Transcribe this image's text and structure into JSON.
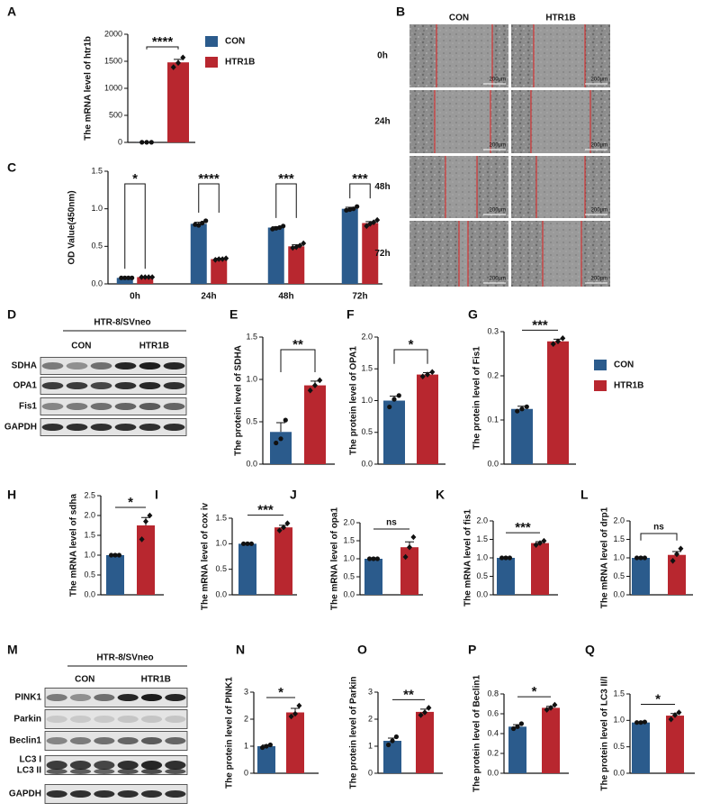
{
  "chart_data": [
    {
      "type": "bar",
      "panel": "A",
      "ylabel": "The mRNA level of htr1b",
      "ylim": [
        0,
        2000
      ],
      "yticks": [
        0,
        500,
        1000,
        1500,
        2000
      ],
      "significance": "****",
      "series": [
        {
          "name": "CON",
          "color": "#2b5b8c",
          "values": [
            2
          ],
          "errors": [
            1
          ],
          "points": [
            [
              2,
              2,
              2
            ]
          ]
        },
        {
          "name": "HTR1B",
          "color": "#b8272f",
          "values": [
            1480
          ],
          "errors": [
            55
          ],
          "points": [
            [
              1390,
              1470,
              1570
            ]
          ]
        }
      ]
    },
    {
      "type": "bar",
      "panel": "C",
      "ylabel": "OD Value(450nm)",
      "categories": [
        "0h",
        "24h",
        "48h",
        "72h"
      ],
      "ylim": [
        0,
        1.5
      ],
      "yticks": [
        {
          "value": 0,
          "label": "0.0"
        },
        0.5,
        {
          "value": 1,
          "label": "1.0"
        },
        1.5
      ],
      "significance": [
        "*",
        "****",
        "***",
        "***"
      ],
      "series": [
        {
          "color": "#2b5b8c",
          "values": [
            0.08,
            0.8,
            0.75,
            1.0
          ],
          "errors": [
            0.003,
            0.02,
            0.01,
            0.02
          ],
          "points": [
            [
              0.08,
              0.08,
              0.08,
              0.08
            ],
            [
              0.79,
              0.78,
              0.81,
              0.84
            ],
            [
              0.73,
              0.74,
              0.75,
              0.77
            ],
            [
              0.98,
              0.99,
              1.0,
              1.03
            ]
          ]
        },
        {
          "color": "#b8272f",
          "values": [
            0.09,
            0.33,
            0.5,
            0.81
          ],
          "errors": [
            0.003,
            0.01,
            0.02,
            0.02
          ],
          "points": [
            [
              0.09,
              0.09,
              0.09,
              0.09
            ],
            [
              0.32,
              0.33,
              0.33,
              0.34
            ],
            [
              0.48,
              0.49,
              0.51,
              0.54
            ],
            [
              0.77,
              0.8,
              0.82,
              0.85
            ]
          ]
        }
      ]
    },
    {
      "type": "bar",
      "panel": "E",
      "ylabel": "The protein level of SDHA",
      "ylim": [
        0,
        1.5
      ],
      "yticks": [
        {
          "value": 0,
          "label": "0.0"
        },
        0.5,
        {
          "value": 1,
          "label": "1.0"
        },
        1.5
      ],
      "significance": "**",
      "series": [
        {
          "color": "#2b5b8c",
          "values": [
            0.38
          ],
          "errors": [
            0.11
          ],
          "points": [
            [
              0.25,
              0.3,
              0.52
            ]
          ]
        },
        {
          "color": "#b8272f",
          "values": [
            0.93
          ],
          "errors": [
            0.05
          ],
          "points": [
            [
              0.87,
              0.93,
              0.99
            ]
          ]
        }
      ]
    },
    {
      "type": "bar",
      "panel": "F",
      "ylabel": "The protein level of OPA1",
      "ylim": [
        0,
        2
      ],
      "yticks": [
        {
          "value": 0,
          "label": "0.0"
        },
        0.5,
        {
          "value": 1,
          "label": "1.0"
        },
        1.5,
        {
          "value": 2,
          "label": "2.0"
        }
      ],
      "significance": "*",
      "series": [
        {
          "color": "#2b5b8c",
          "values": [
            1.0
          ],
          "errors": [
            0.07
          ],
          "points": [
            [
              0.9,
              1.02,
              1.08
            ]
          ]
        },
        {
          "color": "#b8272f",
          "values": [
            1.41
          ],
          "errors": [
            0.03
          ],
          "points": [
            [
              1.38,
              1.41,
              1.45
            ]
          ]
        }
      ]
    },
    {
      "type": "bar",
      "panel": "G",
      "ylabel": "The protein level of Fis1",
      "ylim": [
        0,
        0.3
      ],
      "yticks": [
        {
          "value": 0,
          "label": "0.0"
        },
        0.1,
        0.2,
        0.3
      ],
      "significance": "***",
      "series": [
        {
          "name": "CON",
          "color": "#2b5b8c",
          "values": [
            0.125
          ],
          "errors": [
            0.006
          ],
          "points": [
            [
              0.12,
              0.125,
              0.13
            ]
          ]
        },
        {
          "name": "HTR1B",
          "color": "#b8272f",
          "values": [
            0.278
          ],
          "errors": [
            0.005
          ],
          "points": [
            [
              0.272,
              0.278,
              0.285
            ]
          ]
        }
      ]
    },
    {
      "type": "bar",
      "panel": "H",
      "ylabel": "The mRNA level of sdha",
      "ylim": [
        0,
        2.5
      ],
      "yticks": [
        {
          "value": 0,
          "label": "0.0"
        },
        0.5,
        {
          "value": 1,
          "label": "1.0"
        },
        1.5,
        {
          "value": 2,
          "label": "2.0"
        },
        2.5
      ],
      "significance": "*",
      "series": [
        {
          "color": "#2b5b8c",
          "values": [
            1.0
          ],
          "errors": [
            0.01
          ],
          "points": [
            [
              1,
              1,
              1
            ]
          ]
        },
        {
          "color": "#b8272f",
          "values": [
            1.75
          ],
          "errors": [
            0.2
          ],
          "points": [
            [
              1.4,
              1.85,
              2.0
            ]
          ]
        }
      ]
    },
    {
      "type": "bar",
      "panel": "I",
      "ylabel": "The mRNA level of cox iv",
      "ylim": [
        0,
        1.5
      ],
      "yticks": [
        {
          "value": 0,
          "label": "0.0"
        },
        0.5,
        {
          "value": 1,
          "label": "1.0"
        },
        1.5
      ],
      "significance": "***",
      "series": [
        {
          "color": "#2b5b8c",
          "values": [
            1.0
          ],
          "errors": [
            0.005
          ],
          "points": [
            [
              1,
              1,
              1
            ]
          ]
        },
        {
          "color": "#b8272f",
          "values": [
            1.32
          ],
          "errors": [
            0.04
          ],
          "points": [
            [
              1.26,
              1.32,
              1.4
            ]
          ]
        }
      ]
    },
    {
      "type": "bar",
      "panel": "J",
      "ylabel": "The mRNA level of opa1",
      "ylim": [
        0,
        2
      ],
      "yticks": [
        {
          "value": 0,
          "label": "0.0"
        },
        0.5,
        {
          "value": 1,
          "label": "1.0"
        },
        1.5,
        {
          "value": 2,
          "label": "2.0"
        }
      ],
      "significance": "ns",
      "series": [
        {
          "color": "#2b5b8c",
          "values": [
            1.0
          ],
          "errors": [
            0.005
          ],
          "points": [
            [
              1,
              1,
              1
            ]
          ]
        },
        {
          "color": "#b8272f",
          "values": [
            1.32
          ],
          "errors": [
            0.15
          ],
          "points": [
            [
              1.05,
              1.32,
              1.6
            ]
          ]
        }
      ]
    },
    {
      "type": "bar",
      "panel": "K",
      "ylabel": "The mRNA level of fis1",
      "ylim": [
        0,
        2
      ],
      "yticks": [
        {
          "value": 0,
          "label": "0.0"
        },
        0.5,
        {
          "value": 1,
          "label": "1.0"
        },
        1.5,
        {
          "value": 2,
          "label": "2.0"
        }
      ],
      "significance": "***",
      "series": [
        {
          "color": "#2b5b8c",
          "values": [
            1.0
          ],
          "errors": [
            0.005
          ],
          "points": [
            [
              1,
              1,
              1
            ]
          ]
        },
        {
          "color": "#b8272f",
          "values": [
            1.4
          ],
          "errors": [
            0.04
          ],
          "points": [
            [
              1.35,
              1.4,
              1.46
            ]
          ]
        }
      ]
    },
    {
      "type": "bar",
      "panel": "L",
      "ylabel": "The mRNA level of drp1",
      "ylim": [
        0,
        2
      ],
      "yticks": [
        {
          "value": 0,
          "label": "0.0"
        },
        0.5,
        {
          "value": 1,
          "label": "1.0"
        },
        1.5,
        {
          "value": 2,
          "label": "2.0"
        }
      ],
      "significance": "ns",
      "series": [
        {
          "color": "#2b5b8c",
          "values": [
            1.0
          ],
          "errors": [
            0.005
          ],
          "points": [
            [
              1,
              1,
              1
            ]
          ]
        },
        {
          "color": "#b8272f",
          "values": [
            1.08
          ],
          "errors": [
            0.09
          ],
          "points": [
            [
              0.92,
              1.1,
              1.25
            ]
          ]
        }
      ]
    },
    {
      "type": "bar",
      "panel": "N",
      "ylabel": "The protein level of PINK1",
      "ylim": [
        0,
        3
      ],
      "yticks": [
        0,
        1,
        2,
        3
      ],
      "significance": "*",
      "series": [
        {
          "color": "#2b5b8c",
          "values": [
            1.0
          ],
          "errors": [
            0.04
          ],
          "points": [
            [
              0.95,
              1.0,
              1.05
            ]
          ]
        },
        {
          "color": "#b8272f",
          "values": [
            2.25
          ],
          "errors": [
            0.15
          ],
          "points": [
            [
              2.1,
              2.2,
              2.5
            ]
          ]
        }
      ]
    },
    {
      "type": "bar",
      "panel": "O",
      "ylabel": "The protein level of Parkin",
      "ylim": [
        0,
        3
      ],
      "yticks": [
        0,
        1,
        2,
        3
      ],
      "significance": "**",
      "series": [
        {
          "color": "#2b5b8c",
          "values": [
            1.2
          ],
          "errors": [
            0.1
          ],
          "points": [
            [
              1.05,
              1.2,
              1.35
            ]
          ]
        },
        {
          "color": "#b8272f",
          "values": [
            2.27
          ],
          "errors": [
            0.1
          ],
          "points": [
            [
              2.15,
              2.25,
              2.42
            ]
          ]
        }
      ]
    },
    {
      "type": "bar",
      "panel": "P",
      "ylabel": "The protein level of Beclin1",
      "ylim": [
        0,
        0.8
      ],
      "yticks": [
        {
          "value": 0,
          "label": "0.0"
        },
        0.2,
        0.4,
        0.6,
        0.8
      ],
      "significance": "*",
      "series": [
        {
          "color": "#2b5b8c",
          "values": [
            0.47
          ],
          "errors": [
            0.02
          ],
          "points": [
            [
              0.45,
              0.47,
              0.5
            ]
          ]
        },
        {
          "color": "#b8272f",
          "values": [
            0.66
          ],
          "errors": [
            0.015
          ],
          "points": [
            [
              0.64,
              0.66,
              0.69
            ]
          ]
        }
      ]
    },
    {
      "type": "bar",
      "panel": "Q",
      "ylabel": "The protein level of LC3 II/I",
      "ylim": [
        0,
        1.5
      ],
      "yticks": [
        {
          "value": 0,
          "label": "0.0"
        },
        0.5,
        {
          "value": 1,
          "label": "1.0"
        },
        1.5
      ],
      "significance": "*",
      "series": [
        {
          "color": "#2b5b8c",
          "values": [
            0.96
          ],
          "errors": [
            0.005
          ],
          "points": [
            [
              0.96,
              0.96,
              0.97
            ]
          ]
        },
        {
          "color": "#b8272f",
          "values": [
            1.09
          ],
          "errors": [
            0.04
          ],
          "points": [
            [
              1.02,
              1.1,
              1.15
            ]
          ]
        }
      ]
    }
  ],
  "blots": [
    {
      "panel": "D",
      "title": "HTR-8/SVneo",
      "groups": [
        "CON",
        "HTR1B"
      ],
      "rows": [
        "SDHA",
        "OPA1",
        "Fis1",
        "GAPDH"
      ]
    },
    {
      "panel": "M",
      "title": "HTR-8/SVneo",
      "groups": [
        "CON",
        "HTR1B"
      ],
      "rows": [
        "PINK1",
        "Parkin",
        "Beclin1",
        [
          "LC3 I",
          "LC3 II"
        ],
        "GAPDH"
      ]
    }
  ],
  "scratch": {
    "panel": "B",
    "columns": [
      "CON",
      "HTR1B"
    ],
    "rows": [
      "0h",
      "24h",
      "48h",
      "72h"
    ],
    "scale": "200μm"
  }
}
